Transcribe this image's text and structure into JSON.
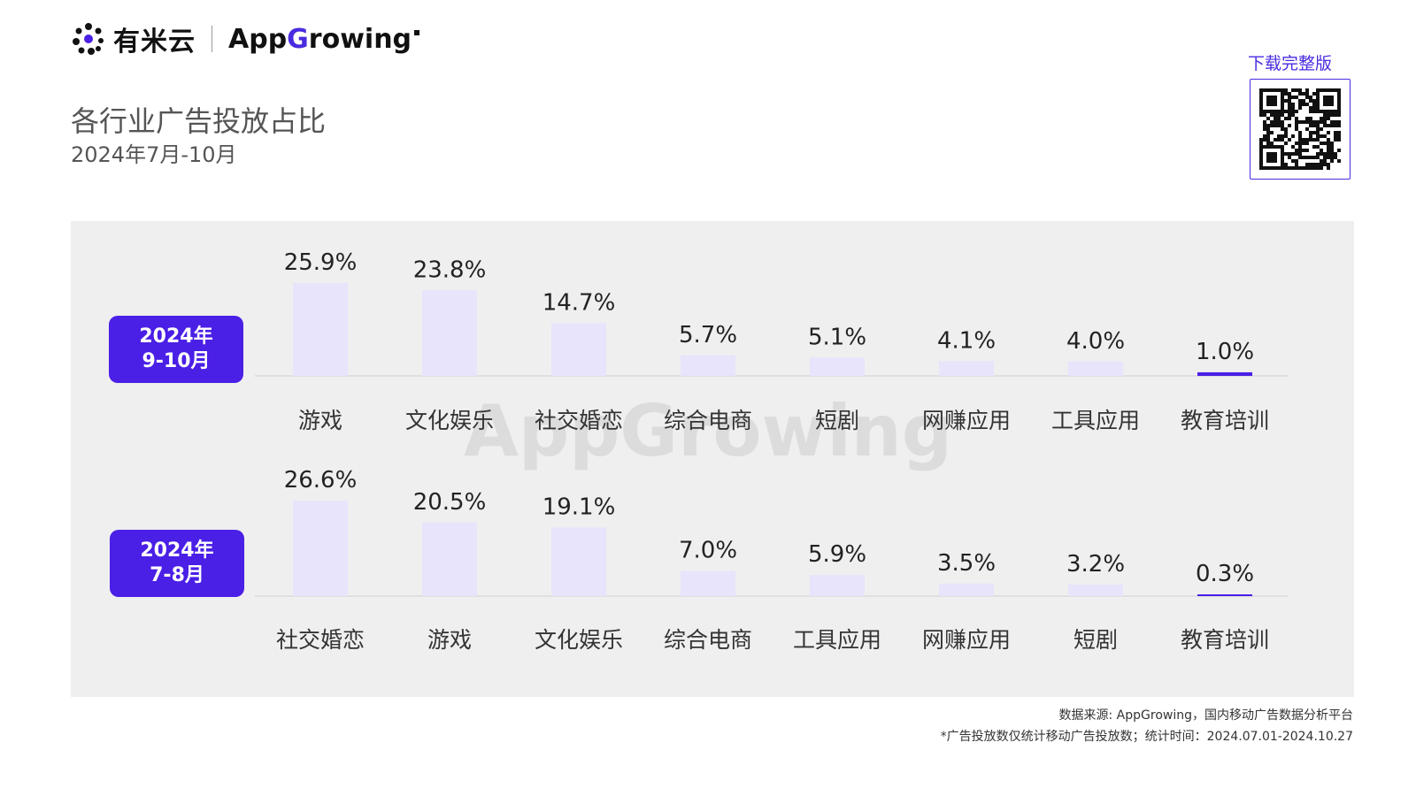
{
  "header": {
    "brand_cn": "有米云",
    "brand_en_pre": "App",
    "brand_en_g": "G",
    "brand_en_post": "rowing"
  },
  "title": "各行业广告投放占比",
  "subtitle": "2024年7月-10月",
  "download_label": "下载完整版",
  "watermark_text": "AppGrowing",
  "colors": {
    "accent": "#4a1fe6",
    "bar": "#e7e4fb",
    "baseline": "#cfcfcf",
    "panel": "#efefef"
  },
  "chart_data": [
    {
      "type": "bar",
      "period_line1": "2024年",
      "period_line2": "9-10月",
      "categories": [
        "游戏",
        "文化娱乐",
        "社交婚恋",
        "综合电商",
        "短剧",
        "网赚应用",
        "工具应用",
        "教育培训"
      ],
      "values": [
        25.9,
        23.8,
        14.7,
        5.7,
        5.1,
        4.1,
        4.0,
        1.0
      ],
      "labels": [
        "25.9%",
        "23.8%",
        "14.7%",
        "5.7%",
        "5.1%",
        "4.1%",
        "4.0%",
        "1.0%"
      ],
      "unit": "%",
      "ylim": [
        0,
        26.6
      ]
    },
    {
      "type": "bar",
      "period_line1": "2024年",
      "period_line2": "7-8月",
      "categories": [
        "社交婚恋",
        "游戏",
        "文化娱乐",
        "综合电商",
        "工具应用",
        "网赚应用",
        "短剧",
        "教育培训"
      ],
      "values": [
        26.6,
        20.5,
        19.1,
        7.0,
        5.9,
        3.5,
        3.2,
        0.3
      ],
      "labels": [
        "26.6%",
        "20.5%",
        "19.1%",
        "7.0%",
        "5.9%",
        "3.5%",
        "3.2%",
        "0.3%"
      ],
      "unit": "%",
      "ylim": [
        0,
        26.6
      ]
    }
  ],
  "footer": {
    "source": "数据来源: AppGrowing，国内移动广告数据分析平台",
    "note": "*广告投放数仅统计移动广告投放数；统计时间：2024.07.01-2024.10.27"
  }
}
